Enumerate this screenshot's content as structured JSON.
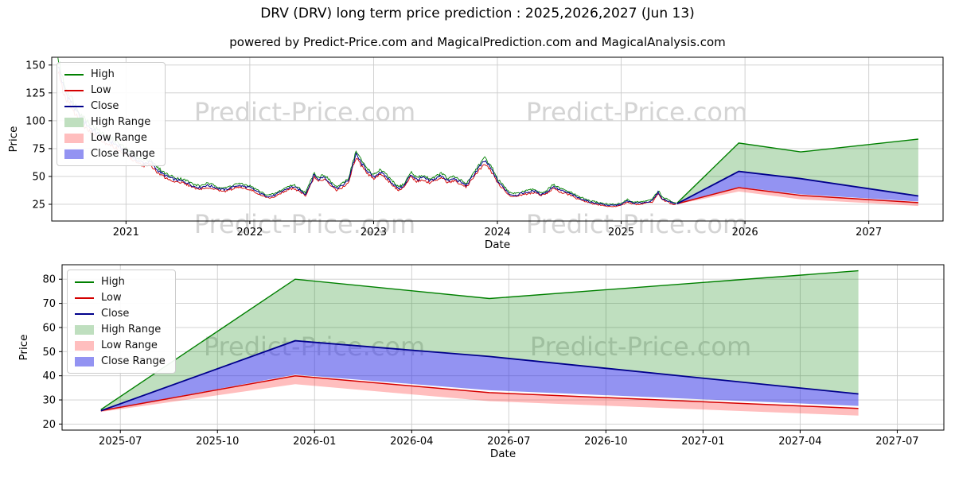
{
  "title": "DRV (DRV) long term price prediction : 2025,2026,2027 (Jun 13)",
  "subtitle": "powered by Predict-Price.com and MagicalPrediction.com and MagicalAnalysis.com",
  "watermark": "Predict-Price.com",
  "colors": {
    "high_line": "#008000",
    "low_line": "#d40000",
    "close_line": "#00008b",
    "high_band": "rgba(0,128,0,0.25)",
    "low_band": "rgba(255,40,40,0.3)",
    "close_band": "rgba(40,40,230,0.5)",
    "grid": "#cccccc",
    "watermark_color": "#d4d4d4"
  },
  "legend": [
    {
      "label": "High",
      "swatch": "line",
      "color": "#008000"
    },
    {
      "label": "Low",
      "swatch": "line",
      "color": "#d40000"
    },
    {
      "label": "Close",
      "swatch": "line",
      "color": "#00008b"
    },
    {
      "label": "High Range",
      "swatch": "patch",
      "color": "#bfdfbf"
    },
    {
      "label": "Low Range",
      "swatch": "patch",
      "color": "#ffbebe"
    },
    {
      "label": "Close Range",
      "swatch": "patch",
      "color": "#9393f2"
    }
  ],
  "chart_data": [
    {
      "type": "line",
      "title": "",
      "xlabel": "Date",
      "ylabel": "Price",
      "xlim": [
        2020.4,
        2027.6
      ],
      "ylim": [
        10,
        157
      ],
      "xticks": [
        {
          "v": 2021,
          "label": "2021"
        },
        {
          "v": 2022,
          "label": "2022"
        },
        {
          "v": 2023,
          "label": "2023"
        },
        {
          "v": 2024,
          "label": "2024"
        },
        {
          "v": 2025,
          "label": "2025"
        },
        {
          "v": 2026,
          "label": "2026"
        },
        {
          "v": 2027,
          "label": "2027"
        }
      ],
      "yticks": [
        25,
        50,
        75,
        100,
        125,
        150
      ],
      "historical": {
        "x": [
          2020.45,
          2020.5,
          2020.55,
          2020.6,
          2020.65,
          2020.7,
          2020.75,
          2020.8,
          2020.85,
          2020.9,
          2020.95,
          2021.0,
          2021.05,
          2021.1,
          2021.15,
          2021.2,
          2021.25,
          2021.3,
          2021.35,
          2021.4,
          2021.45,
          2021.5,
          2021.55,
          2021.6,
          2021.65,
          2021.7,
          2021.75,
          2021.8,
          2021.85,
          2021.9,
          2021.95,
          2022.0,
          2022.05,
          2022.1,
          2022.15,
          2022.2,
          2022.25,
          2022.3,
          2022.35,
          2022.4,
          2022.45,
          2022.5,
          2022.52,
          2022.55,
          2022.6,
          2022.65,
          2022.7,
          2022.75,
          2022.8,
          2022.83,
          2022.86,
          2022.9,
          2022.95,
          2023.0,
          2023.05,
          2023.1,
          2023.15,
          2023.2,
          2023.25,
          2023.3,
          2023.35,
          2023.4,
          2023.45,
          2023.5,
          2023.55,
          2023.6,
          2023.65,
          2023.7,
          2023.75,
          2023.8,
          2023.85,
          2023.9,
          2023.93,
          2023.97,
          2024.0,
          2024.05,
          2024.1,
          2024.15,
          2024.2,
          2024.25,
          2024.3,
          2024.35,
          2024.4,
          2024.45,
          2024.5,
          2024.55,
          2024.6,
          2024.65,
          2024.7,
          2024.75,
          2024.8,
          2024.85,
          2024.9,
          2024.95,
          2025.0,
          2025.05,
          2025.1,
          2025.15,
          2025.2,
          2025.25,
          2025.3,
          2025.33,
          2025.38,
          2025.42,
          2025.45
        ],
        "close": [
          150,
          128,
          118,
          108,
          100,
          95,
          90,
          86,
          82,
          80,
          76,
          72,
          68,
          64,
          62,
          63,
          56,
          52,
          49,
          47,
          46,
          44,
          41,
          40,
          42,
          41,
          39,
          38,
          40,
          42,
          41,
          40,
          37,
          34,
          32,
          33,
          36,
          39,
          41,
          38,
          34,
          46,
          52,
          47,
          50,
          44,
          39,
          42,
          47,
          60,
          70,
          62,
          55,
          49,
          54,
          50,
          44,
          39,
          42,
          52,
          47,
          49,
          46,
          48,
          51,
          46,
          48,
          45,
          42,
          50,
          58,
          64,
          60,
          53,
          46,
          40,
          34,
          33,
          35,
          36,
          37,
          34,
          36,
          41,
          38,
          36,
          34,
          31,
          29,
          27,
          26,
          25,
          24,
          24,
          25,
          28,
          26,
          26,
          27,
          28,
          36,
          30,
          28,
          26,
          25.5
        ]
      },
      "prediction": {
        "x": [
          2025.45,
          2025.95,
          2026.45,
          2027.4
        ],
        "high": [
          26,
          80,
          72,
          83.5
        ],
        "close": [
          25.5,
          54.5,
          48,
          32.5
        ],
        "close_lower": [
          25.5,
          40.5,
          34,
          27.5
        ],
        "low": [
          25.5,
          40,
          33,
          26.5
        ],
        "low_lower": [
          25,
          36.5,
          29.5,
          23.5
        ]
      }
    },
    {
      "type": "line",
      "title": "",
      "xlabel": "Date",
      "ylabel": "Price",
      "xlim": [
        2025.35,
        2027.62
      ],
      "ylim": [
        17.5,
        86
      ],
      "xticks": [
        {
          "v": 2025.5,
          "label": "2025-07"
        },
        {
          "v": 2025.75,
          "label": "2025-10"
        },
        {
          "v": 2026.0,
          "label": "2026-01"
        },
        {
          "v": 2026.25,
          "label": "2026-04"
        },
        {
          "v": 2026.5,
          "label": "2026-07"
        },
        {
          "v": 2026.75,
          "label": "2026-10"
        },
        {
          "v": 2027.0,
          "label": "2027-01"
        },
        {
          "v": 2027.25,
          "label": "2027-04"
        },
        {
          "v": 2027.5,
          "label": "2027-07"
        }
      ],
      "yticks": [
        20,
        30,
        40,
        50,
        60,
        70,
        80
      ],
      "prediction": {
        "x": [
          2025.45,
          2025.95,
          2026.45,
          2027.4
        ],
        "high": [
          26,
          80,
          72,
          83.5
        ],
        "close": [
          25.5,
          54.5,
          48,
          32.5
        ],
        "close_lower": [
          25.5,
          40.5,
          34,
          27.5
        ],
        "low": [
          25.5,
          40,
          33,
          26.5
        ],
        "low_lower": [
          25,
          36.5,
          29.5,
          23.5
        ]
      }
    }
  ]
}
